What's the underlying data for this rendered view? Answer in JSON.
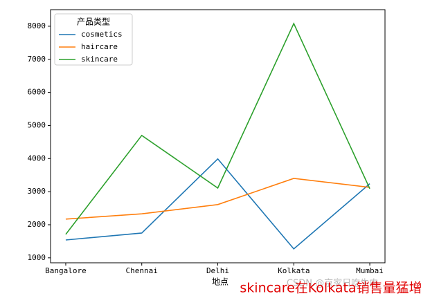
{
  "chart_data": {
    "type": "line",
    "categories": [
      "Bangalore",
      "Chennai",
      "Delhi",
      "Kolkata",
      "Mumbai"
    ],
    "x_label": "地点",
    "legend_title": "产品类型",
    "legend": "upper left",
    "series": [
      {
        "name": "cosmetics",
        "color": "#1f77b4",
        "values": [
          1540,
          1750,
          3990,
          1270,
          3240
        ]
      },
      {
        "name": "haircare",
        "color": "#ff7f0e",
        "values": [
          2170,
          2330,
          2610,
          3400,
          3130
        ]
      },
      {
        "name": "skincare",
        "color": "#2ca02c",
        "values": [
          1710,
          4700,
          3110,
          8080,
          3090
        ]
      }
    ],
    "ylim": [
      850,
      8500
    ],
    "yticks": [
      1000,
      2000,
      3000,
      4000,
      5000,
      6000,
      7000,
      8000
    ],
    "annotation": "skincare在Kolkata销售量猛增",
    "watermark": "CSDN @京家日吃牛肉"
  }
}
